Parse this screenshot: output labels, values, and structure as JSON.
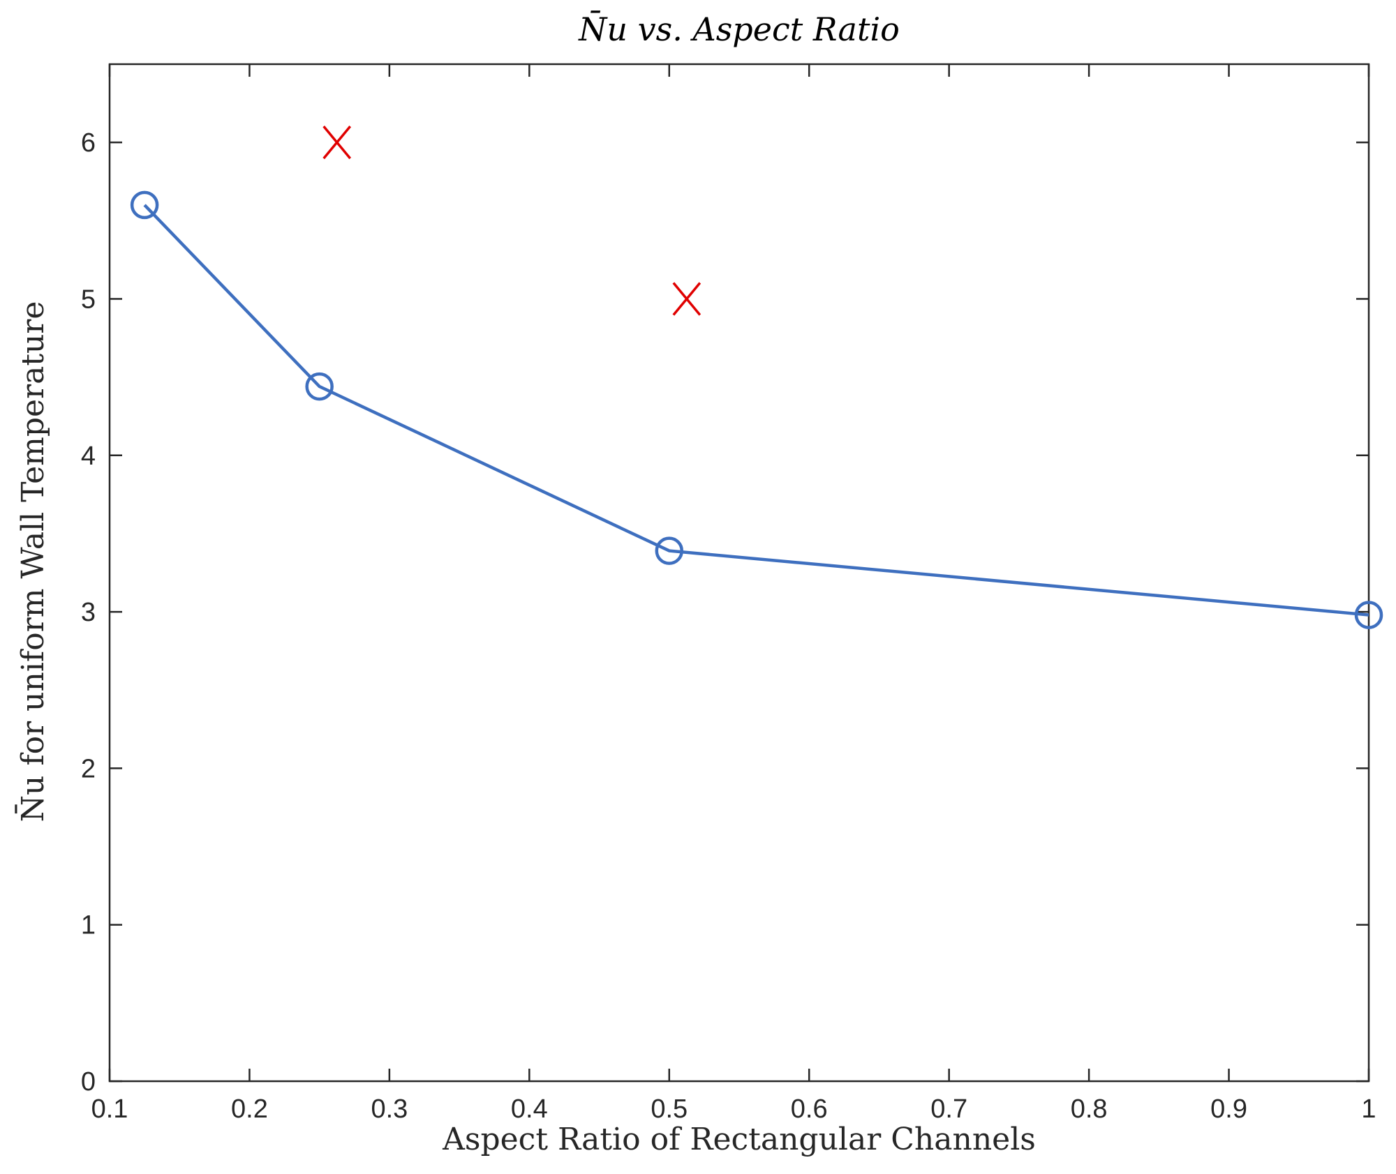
{
  "chart_data": {
    "type": "line",
    "title": "N̄u vs. Aspect Ratio",
    "xlabel": "Aspect Ratio of Rectangular Channels",
    "ylabel": "N̄u for uniform Wall Temperature",
    "xlim": [
      0.1,
      1
    ],
    "ylim": [
      0,
      6.5
    ],
    "xticks": [
      "0.1",
      "0.2",
      "0.3",
      "0.4",
      "0.5",
      "0.6",
      "0.7",
      "0.8",
      "0.9",
      "1"
    ],
    "yticks": [
      "0",
      "1",
      "2",
      "3",
      "4",
      "5",
      "6"
    ],
    "grid": false,
    "series": [
      {
        "marker": "circle",
        "line": "solid",
        "color": "#3E6FBF",
        "x": [
          0.125,
          0.25,
          0.5,
          1
        ],
        "y": [
          5.6,
          4.44,
          3.39,
          2.98
        ]
      },
      {
        "marker": "x",
        "line": "none",
        "color": "#E00000",
        "x": [
          0.2625,
          0.5125
        ],
        "y": [
          6.0,
          5.0
        ]
      }
    ]
  }
}
